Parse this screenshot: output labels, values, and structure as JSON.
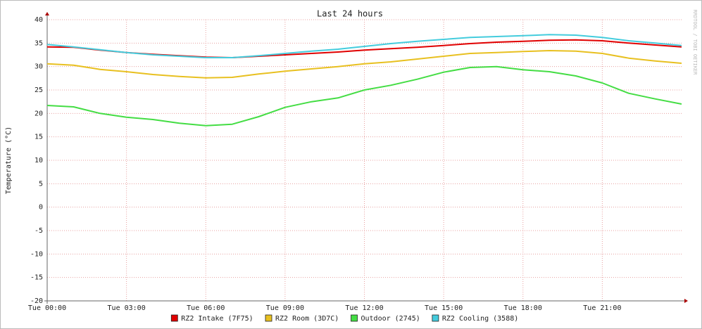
{
  "chart_data": {
    "type": "line",
    "title": "Last 24 hours",
    "y_label": "Temperature (°C)",
    "watermark": "RRDTOOL / TOBI OETIKER",
    "x": [
      0,
      1,
      2,
      3,
      4,
      5,
      6,
      7,
      8,
      9,
      10,
      11,
      12,
      13,
      14,
      15,
      16,
      17,
      18,
      19,
      20,
      21,
      22,
      23,
      24
    ],
    "xlim": [
      0,
      24
    ],
    "xticks": [
      {
        "value": 0,
        "label": "Tue 00:00"
      },
      {
        "value": 3,
        "label": "Tue 03:00"
      },
      {
        "value": 6,
        "label": "Tue 06:00"
      },
      {
        "value": 9,
        "label": "Tue 09:00"
      },
      {
        "value": 12,
        "label": "Tue 12:00"
      },
      {
        "value": 15,
        "label": "Tue 15:00"
      },
      {
        "value": 18,
        "label": "Tue 18:00"
      },
      {
        "value": 21,
        "label": "Tue 21:00"
      }
    ],
    "ylim": [
      -20,
      40
    ],
    "yticks": [
      -20,
      -15,
      -10,
      -5,
      0,
      5,
      10,
      15,
      20,
      25,
      30,
      35,
      40
    ],
    "grid": true,
    "legend": "bottom",
    "series": [
      {
        "name": "RZ2 Intake (7F75)",
        "color": "#e00000",
        "values": [
          34.2,
          34.1,
          33.5,
          33.0,
          32.6,
          32.3,
          32.0,
          31.9,
          32.2,
          32.5,
          32.8,
          33.1,
          33.5,
          33.8,
          34.1,
          34.5,
          34.9,
          35.2,
          35.4,
          35.6,
          35.7,
          35.5,
          35.0,
          34.6,
          34.2
        ]
      },
      {
        "name": "RZ2 Room (3D7C)",
        "color": "#e8c020",
        "values": [
          30.6,
          30.3,
          29.4,
          28.9,
          28.3,
          27.9,
          27.6,
          27.7,
          28.4,
          29.0,
          29.5,
          30.0,
          30.6,
          31.0,
          31.6,
          32.2,
          32.8,
          33.0,
          33.2,
          33.4,
          33.3,
          32.8,
          31.8,
          31.2,
          30.7
        ]
      },
      {
        "name": "Outdoor (2745)",
        "color": "#44dd44",
        "values": [
          21.7,
          21.4,
          20.0,
          19.2,
          18.7,
          17.9,
          17.4,
          17.7,
          19.3,
          21.3,
          22.5,
          23.3,
          25.0,
          26.0,
          27.3,
          28.8,
          29.8,
          30.0,
          29.3,
          28.9,
          28.0,
          26.5,
          24.3,
          23.1,
          22.0
        ]
      },
      {
        "name": "RZ2 Cooling (3588)",
        "color": "#44ccdd",
        "values": [
          34.7,
          34.2,
          33.6,
          33.0,
          32.5,
          32.2,
          31.9,
          31.9,
          32.3,
          32.8,
          33.3,
          33.7,
          34.3,
          34.9,
          35.4,
          35.8,
          36.2,
          36.4,
          36.6,
          36.8,
          36.7,
          36.2,
          35.5,
          35.0,
          34.5
        ]
      }
    ]
  }
}
